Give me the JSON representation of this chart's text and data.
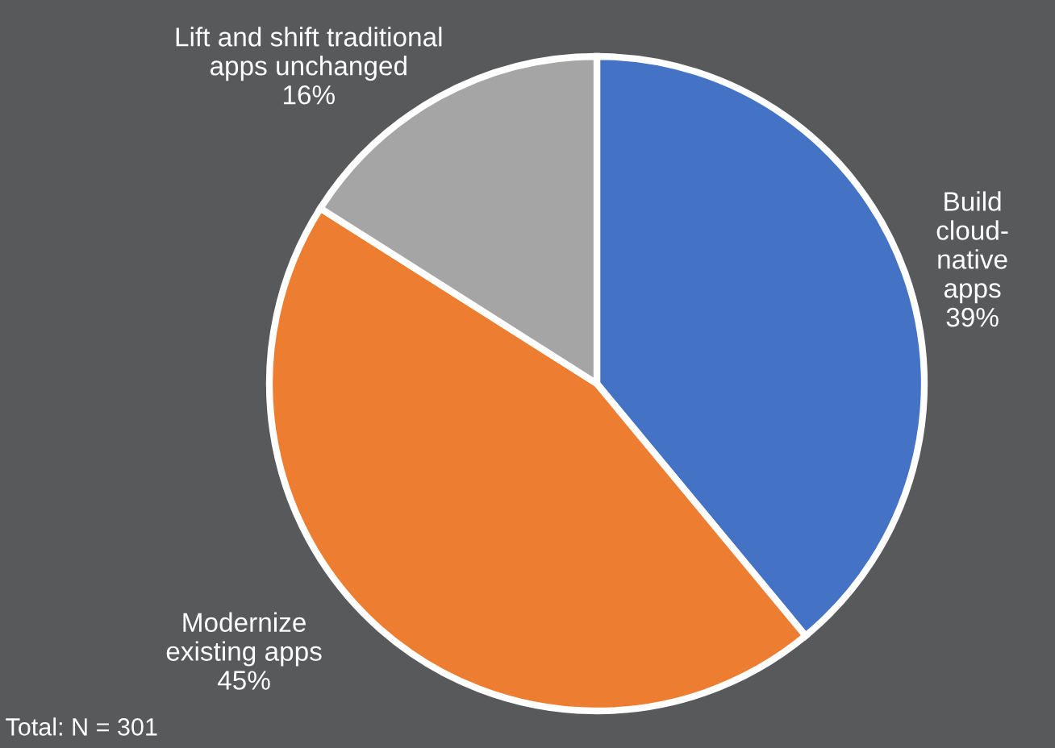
{
  "chart_data": {
    "type": "pie",
    "categories": [
      "Build\ncloud-\nnative\napps",
      "Modernize\nexisting apps",
      "Lift and shift traditional\napps unchanged"
    ],
    "values": [
      39,
      45,
      16
    ],
    "colors": [
      "#4472c4",
      "#ed7d31",
      "#a5a5a5"
    ],
    "value_labels": [
      "39%",
      "45%",
      "16%"
    ],
    "legend": false,
    "annotations": [
      "Total: N = 301"
    ]
  }
}
